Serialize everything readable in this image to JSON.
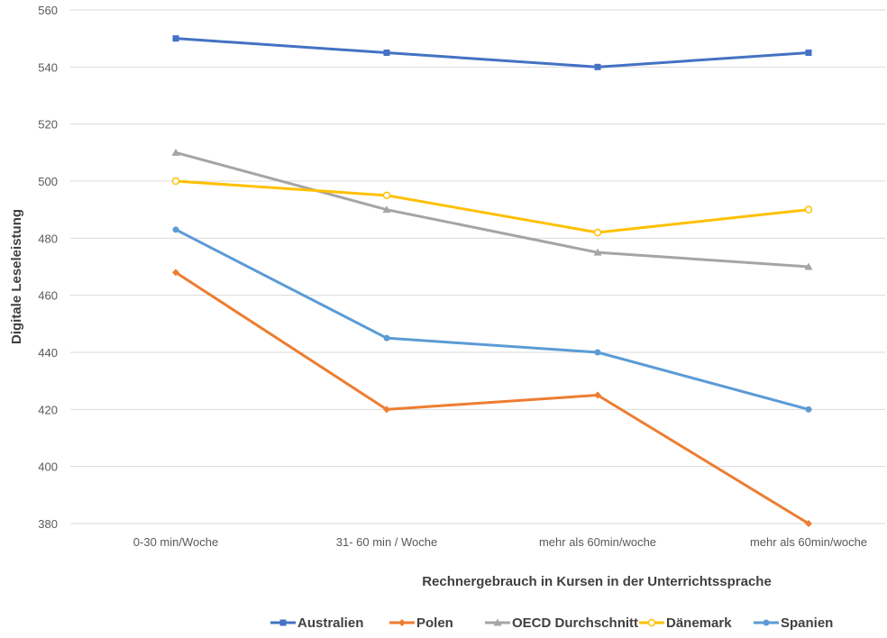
{
  "chart_data": {
    "type": "line",
    "title": "",
    "xlabel": "Rechnergebrauch in Kursen in der Unterrichtssprache",
    "ylabel": "Digitale Leseleistung",
    "ylim": [
      380,
      560
    ],
    "yticks": [
      380,
      400,
      420,
      440,
      460,
      480,
      500,
      520,
      540,
      560
    ],
    "grid": true,
    "legend_position": "bottom",
    "categories": [
      "0-30 min/Woche",
      "31- 60 min / Woche",
      "mehr als 60min/woche",
      "mehr als 60min/woche"
    ],
    "series": [
      {
        "name": "Australien",
        "color": "#4472C4",
        "marker": "square",
        "values": [
          550,
          545,
          540,
          545
        ]
      },
      {
        "name": "Polen",
        "color": "#ED7D31",
        "marker": "diamond",
        "values": [
          468,
          420,
          425,
          380
        ]
      },
      {
        "name": "OECD Durchschnitt",
        "color": "#A5A5A5",
        "marker": "triangle",
        "values": [
          510,
          490,
          475,
          470
        ]
      },
      {
        "name": "Dänemark",
        "color": "#FFC000",
        "marker": "open-circle",
        "values": [
          500,
          495,
          482,
          490
        ]
      },
      {
        "name": "Spanien",
        "color": "#5B9BD5",
        "marker": "circle",
        "values": [
          483,
          445,
          440,
          420
        ]
      }
    ]
  }
}
